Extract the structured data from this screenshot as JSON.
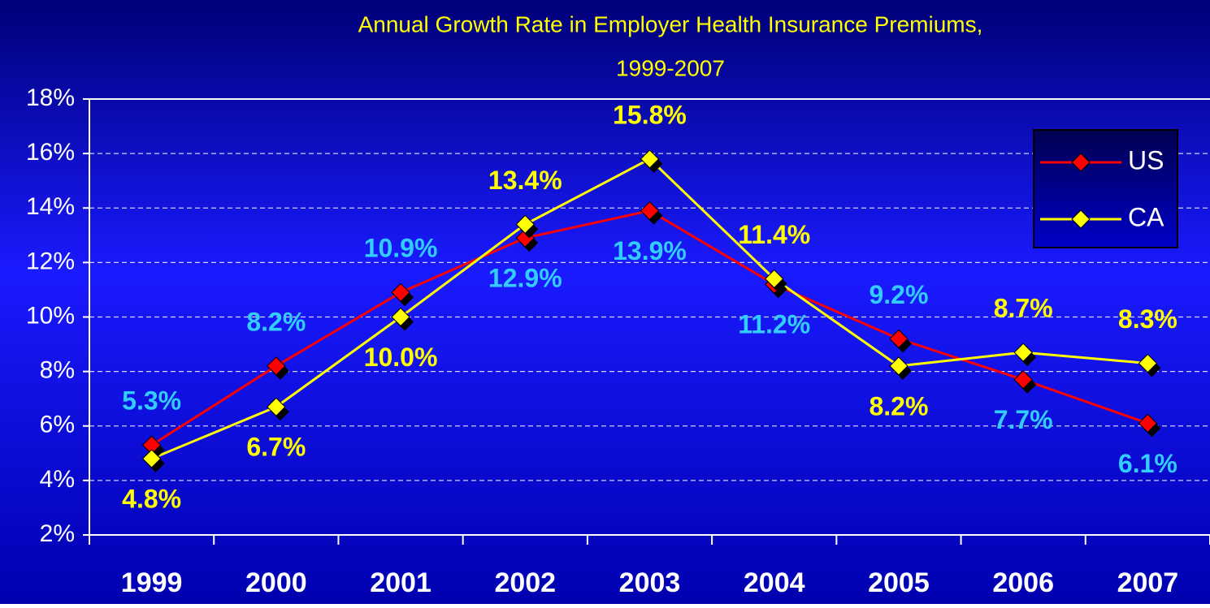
{
  "chart_data": {
    "type": "line",
    "title": [
      "Annual Growth Rate in Employer Health Insurance Premiums,",
      "1999-2007"
    ],
    "categories": [
      "1999",
      "2000",
      "2001",
      "2002",
      "2003",
      "2004",
      "2005",
      "2006",
      "2007"
    ],
    "series": [
      {
        "name": "US",
        "color": "#ff0000",
        "label_color": "#33ccff",
        "values": [
          5.3,
          8.2,
          10.9,
          12.9,
          13.9,
          11.2,
          9.2,
          7.7,
          6.1
        ],
        "value_labels": [
          "5.3%",
          "8.2%",
          "10.9%",
          "12.9%",
          "13.9%",
          "11.2%",
          "9.2%",
          "7.7%",
          "6.1%"
        ]
      },
      {
        "name": "CA",
        "color": "#ffff00",
        "label_color": "#ffff00",
        "values": [
          4.8,
          6.7,
          10.0,
          13.4,
          15.8,
          11.4,
          8.2,
          8.7,
          8.3
        ],
        "value_labels": [
          "4.8%",
          "6.7%",
          "10.0%",
          "13.4%",
          "15.8%",
          "11.4%",
          "8.2%",
          "8.7%",
          "8.3%"
        ]
      }
    ],
    "ylim": [
      2,
      18
    ],
    "yticks": [
      {
        "value": 2,
        "label": "2%"
      },
      {
        "value": 4,
        "label": "4%"
      },
      {
        "value": 6,
        "label": "6%"
      },
      {
        "value": 8,
        "label": "8%"
      },
      {
        "value": 10,
        "label": "10%"
      },
      {
        "value": 12,
        "label": "12%"
      },
      {
        "value": 14,
        "label": "14%"
      },
      {
        "value": 16,
        "label": "16%"
      },
      {
        "value": 18,
        "label": "18%"
      }
    ],
    "grid": true,
    "legend": "upper right"
  }
}
